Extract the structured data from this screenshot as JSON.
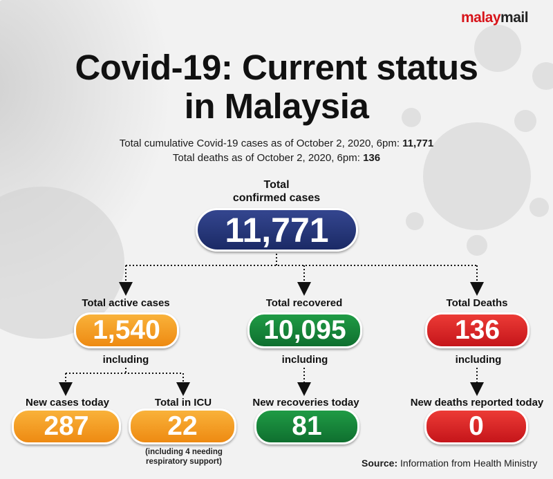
{
  "brand": {
    "part1": "malay",
    "part2": "mail"
  },
  "title": {
    "line1": "Covid-19: Current status",
    "line2": "in Malaysia"
  },
  "subtitle": {
    "line1_prefix": "Total cumulative Covid-19 cases as of October 2, 2020, 6pm: ",
    "line1_value": "11,771",
    "line2_prefix": "Total deaths as of October 2, 2020, 6pm: ",
    "line2_value": "136"
  },
  "total": {
    "label_line1": "Total",
    "label_line2": "confirmed cases",
    "value": "11,771"
  },
  "active": {
    "label": "Total active cases",
    "value": "1,540",
    "including": "including"
  },
  "recovered": {
    "label": "Total recovered",
    "value": "10,095",
    "including": "including"
  },
  "deaths": {
    "label": "Total Deaths",
    "value": "136",
    "including": "including"
  },
  "new_cases": {
    "label": "New cases today",
    "value": "287"
  },
  "icu": {
    "label": "Total in ICU",
    "value": "22",
    "note_line1": "(including 4 needing",
    "note_line2": "respiratory support)"
  },
  "new_recoveries": {
    "label": "New recoveries today",
    "value": "81"
  },
  "new_deaths": {
    "label": "New deaths reported today",
    "value": "0"
  },
  "source": {
    "prefix": "Source:",
    "text": " Information from Health Ministry"
  },
  "colors": {
    "navy": "#1b2a66",
    "orange": "#f39c1f",
    "green": "#15803a",
    "red": "#d41f22",
    "brand_red": "#d7141a"
  }
}
